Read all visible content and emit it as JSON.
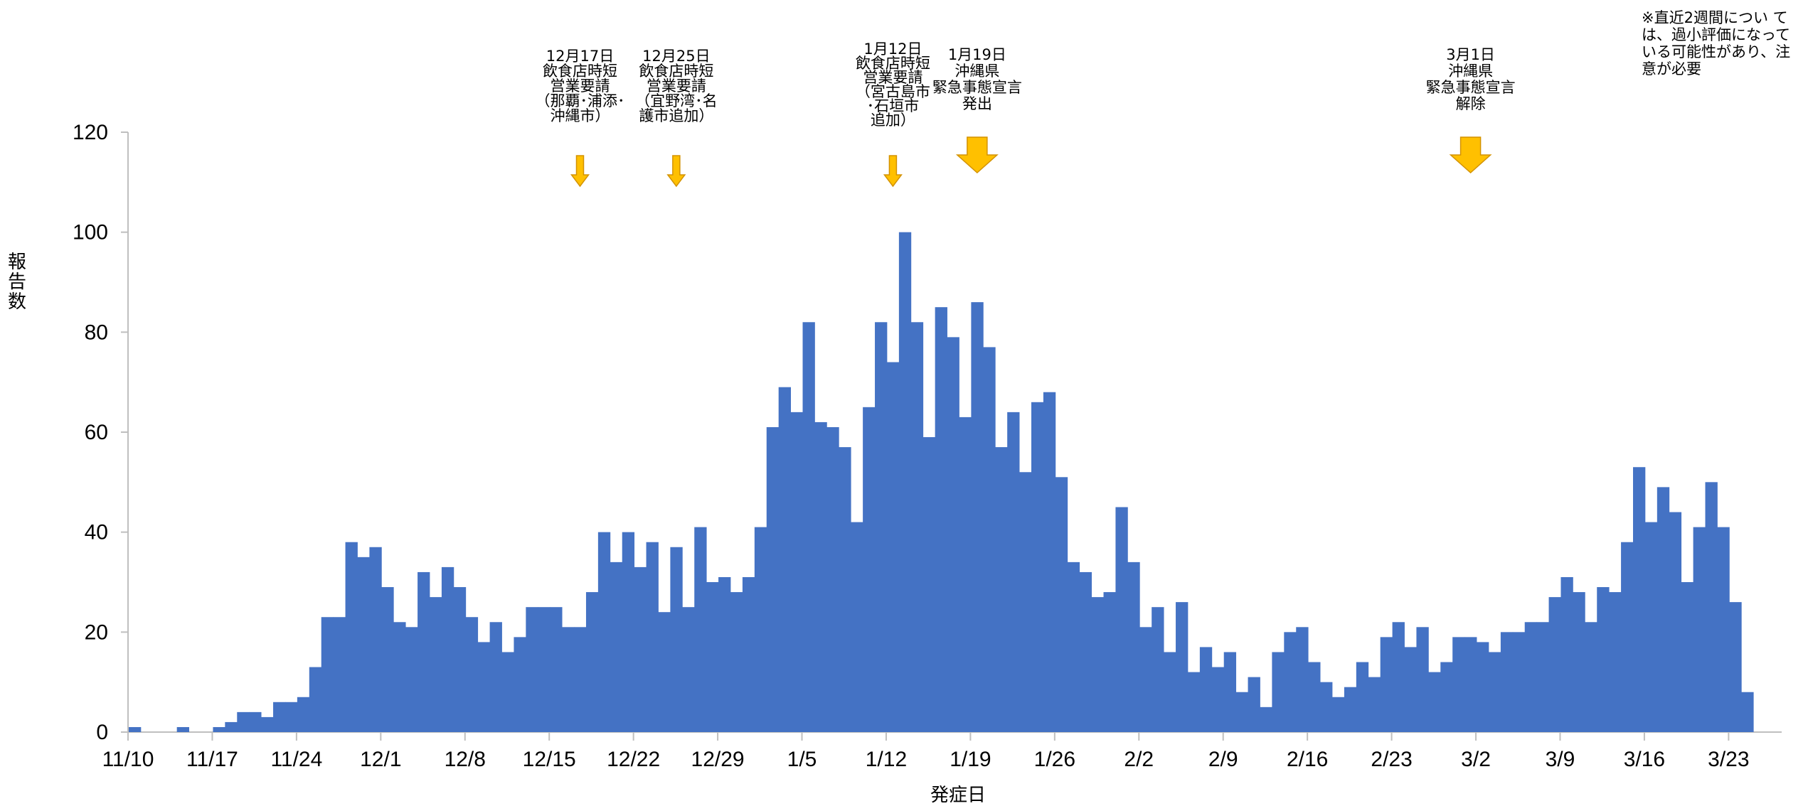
{
  "chart_data": {
    "type": "bar",
    "start_date": "11/10",
    "values": [
      1,
      0,
      0,
      0,
      1,
      0,
      0,
      1,
      2,
      4,
      4,
      3,
      6,
      6,
      7,
      13,
      23,
      23,
      38,
      35,
      37,
      29,
      22,
      21,
      32,
      27,
      33,
      29,
      23,
      18,
      22,
      16,
      19,
      25,
      25,
      25,
      21,
      21,
      28,
      40,
      34,
      40,
      33,
      38,
      24,
      37,
      25,
      41,
      30,
      31,
      28,
      31,
      41,
      61,
      69,
      64,
      82,
      62,
      61,
      57,
      42,
      65,
      82,
      74,
      100,
      82,
      59,
      85,
      79,
      63,
      86,
      77,
      57,
      64,
      52,
      66,
      68,
      51,
      34,
      32,
      27,
      28,
      45,
      34,
      21,
      25,
      16,
      26,
      12,
      17,
      13,
      16,
      8,
      11,
      5,
      16,
      20,
      21,
      14,
      10,
      7,
      9,
      14,
      11,
      19,
      22,
      17,
      21,
      12,
      14,
      19,
      19,
      18,
      16,
      20,
      20,
      22,
      22,
      27,
      31,
      28,
      22,
      29,
      28,
      38,
      53,
      42,
      49,
      44,
      30,
      41,
      50,
      41,
      26,
      8
    ],
    "x_tick_labels": [
      "11/10",
      "11/17",
      "11/24",
      "12/1",
      "12/8",
      "12/15",
      "12/22",
      "12/29",
      "1/5",
      "1/12",
      "1/19",
      "1/26",
      "2/2",
      "2/9",
      "2/16",
      "2/23",
      "3/2",
      "3/9",
      "3/16",
      "3/23"
    ],
    "y_ticks": [
      "0",
      "20",
      "40",
      "60",
      "80",
      "100",
      "120"
    ],
    "ylim": [
      0,
      120
    ],
    "xlabel": "発症日",
    "ylabel": [
      "報",
      "告",
      "数"
    ],
    "bar_color": "#4472C4",
    "annotation_color": "#FFC000",
    "annotations": [
      {
        "day": 37,
        "arrow": "small",
        "lines": [
          "12月17日",
          "飲食店時短",
          "営業要請",
          "（那覇･浦添･",
          "沖縄市）"
        ]
      },
      {
        "day": 45,
        "arrow": "small",
        "lines": [
          "12月25日",
          "飲食店時短",
          "営業要請",
          "（宜野湾･名",
          "護市追加）"
        ]
      },
      {
        "day": 63,
        "arrow": "small",
        "lines": [
          "1月12日",
          "飲食店時短",
          "営業要請",
          "（宮古島市",
          "･石垣市",
          "追加）"
        ]
      },
      {
        "day": 70,
        "arrow": "large",
        "lines": [
          "1月19日",
          "沖縄県",
          "緊急事態宣言",
          "発出"
        ]
      },
      {
        "day": 111,
        "arrow": "large",
        "lines": [
          "3月1日",
          "沖縄県",
          "緊急事態宣言",
          "解除"
        ]
      }
    ],
    "note_lines": [
      "※直近2週間につい て",
      "は、過小評価になって",
      "いる可能性があり、注",
      "意が必要"
    ]
  }
}
